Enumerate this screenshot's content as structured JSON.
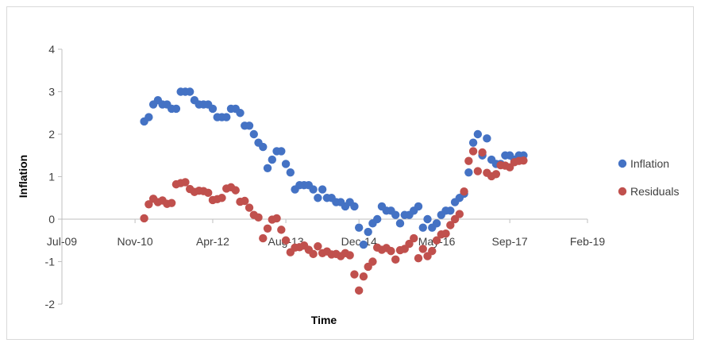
{
  "chart_data": {
    "type": "scatter",
    "xlabel": "Time",
    "ylabel": "Inflation",
    "ylim": [
      -2,
      4
    ],
    "yticks": [
      -2,
      -1,
      0,
      1,
      2,
      3,
      4
    ],
    "xlim": [
      "2009-07",
      "2019-02"
    ],
    "xticks": [
      "Jul-09",
      "Nov-10",
      "Apr-12",
      "Aug-13",
      "Dec-14",
      "May-16",
      "Sep-17",
      "Feb-19"
    ],
    "grid": false,
    "legend_position": "right",
    "series": [
      {
        "name": "Inflation",
        "color": "#4472c4",
        "points": [
          [
            "2011-01",
            2.3
          ],
          [
            "2011-02",
            2.4
          ],
          [
            "2011-03",
            2.7
          ],
          [
            "2011-04",
            2.8
          ],
          [
            "2011-05",
            2.7
          ],
          [
            "2011-06",
            2.7
          ],
          [
            "2011-07",
            2.6
          ],
          [
            "2011-08",
            2.6
          ],
          [
            "2011-09",
            3.0
          ],
          [
            "2011-10",
            3.0
          ],
          [
            "2011-11",
            3.0
          ],
          [
            "2011-12",
            2.8
          ],
          [
            "2012-01",
            2.7
          ],
          [
            "2012-02",
            2.7
          ],
          [
            "2012-03",
            2.7
          ],
          [
            "2012-04",
            2.6
          ],
          [
            "2012-05",
            2.4
          ],
          [
            "2012-06",
            2.4
          ],
          [
            "2012-07",
            2.4
          ],
          [
            "2012-08",
            2.6
          ],
          [
            "2012-09",
            2.6
          ],
          [
            "2012-10",
            2.5
          ],
          [
            "2012-11",
            2.2
          ],
          [
            "2012-12",
            2.2
          ],
          [
            "2013-01",
            2.0
          ],
          [
            "2013-02",
            1.8
          ],
          [
            "2013-03",
            1.7
          ],
          [
            "2013-04",
            1.2
          ],
          [
            "2013-05",
            1.4
          ],
          [
            "2013-06",
            1.6
          ],
          [
            "2013-07",
            1.6
          ],
          [
            "2013-08",
            1.3
          ],
          [
            "2013-09",
            1.1
          ],
          [
            "2013-10",
            0.7
          ],
          [
            "2013-11",
            0.8
          ],
          [
            "2013-12",
            0.8
          ],
          [
            "2014-01",
            0.8
          ],
          [
            "2014-02",
            0.7
          ],
          [
            "2014-03",
            0.5
          ],
          [
            "2014-04",
            0.7
          ],
          [
            "2014-05",
            0.5
          ],
          [
            "2014-06",
            0.5
          ],
          [
            "2014-07",
            0.4
          ],
          [
            "2014-08",
            0.4
          ],
          [
            "2014-09",
            0.3
          ],
          [
            "2014-10",
            0.4
          ],
          [
            "2014-11",
            0.3
          ],
          [
            "2014-12",
            -0.2
          ],
          [
            "2015-01",
            -0.6
          ],
          [
            "2015-02",
            -0.3
          ],
          [
            "2015-03",
            -0.1
          ],
          [
            "2015-04",
            0.0
          ],
          [
            "2015-05",
            0.3
          ],
          [
            "2015-06",
            0.2
          ],
          [
            "2015-07",
            0.2
          ],
          [
            "2015-08",
            0.1
          ],
          [
            "2015-09",
            -0.1
          ],
          [
            "2015-10",
            0.1
          ],
          [
            "2015-11",
            0.1
          ],
          [
            "2015-12",
            0.2
          ],
          [
            "2016-01",
            0.3
          ],
          [
            "2016-02",
            -0.2
          ],
          [
            "2016-03",
            0.0
          ],
          [
            "2016-04",
            -0.2
          ],
          [
            "2016-05",
            -0.1
          ],
          [
            "2016-06",
            0.1
          ],
          [
            "2016-07",
            0.2
          ],
          [
            "2016-08",
            0.2
          ],
          [
            "2016-09",
            0.4
          ],
          [
            "2016-10",
            0.5
          ],
          [
            "2016-11",
            0.6
          ],
          [
            "2016-12",
            1.1
          ],
          [
            "2017-01",
            1.8
          ],
          [
            "2017-02",
            2.0
          ],
          [
            "2017-03",
            1.5
          ],
          [
            "2017-04",
            1.9
          ],
          [
            "2017-05",
            1.4
          ],
          [
            "2017-06",
            1.3
          ],
          [
            "2017-07",
            1.3
          ],
          [
            "2017-08",
            1.5
          ],
          [
            "2017-09",
            1.5
          ],
          [
            "2017-10",
            1.4
          ],
          [
            "2017-11",
            1.5
          ],
          [
            "2017-12",
            1.5
          ]
        ]
      },
      {
        "name": "Residuals",
        "color": "#c0504d",
        "points": [
          [
            "2011-01",
            0.02
          ],
          [
            "2011-02",
            0.35
          ],
          [
            "2011-03",
            0.48
          ],
          [
            "2011-04",
            0.4
          ],
          [
            "2011-05",
            0.44
          ],
          [
            "2011-06",
            0.36
          ],
          [
            "2011-07",
            0.38
          ],
          [
            "2011-08",
            0.82
          ],
          [
            "2011-09",
            0.85
          ],
          [
            "2011-10",
            0.87
          ],
          [
            "2011-11",
            0.71
          ],
          [
            "2011-12",
            0.64
          ],
          [
            "2012-01",
            0.67
          ],
          [
            "2012-02",
            0.66
          ],
          [
            "2012-03",
            0.62
          ],
          [
            "2012-04",
            0.45
          ],
          [
            "2012-05",
            0.47
          ],
          [
            "2012-06",
            0.5
          ],
          [
            "2012-07",
            0.72
          ],
          [
            "2012-08",
            0.75
          ],
          [
            "2012-09",
            0.68
          ],
          [
            "2012-10",
            0.41
          ],
          [
            "2012-11",
            0.43
          ],
          [
            "2012-12",
            0.27
          ],
          [
            "2013-01",
            0.1
          ],
          [
            "2013-02",
            0.04
          ],
          [
            "2013-03",
            -0.45
          ],
          [
            "2013-04",
            -0.22
          ],
          [
            "2013-05",
            -0.01
          ],
          [
            "2013-06",
            0.02
          ],
          [
            "2013-07",
            -0.25
          ],
          [
            "2013-08",
            -0.5
          ],
          [
            "2013-09",
            -0.78
          ],
          [
            "2013-10",
            -0.67
          ],
          [
            "2013-11",
            -0.66
          ],
          [
            "2013-12",
            -0.62
          ],
          [
            "2014-01",
            -0.72
          ],
          [
            "2014-02",
            -0.82
          ],
          [
            "2014-03",
            -0.64
          ],
          [
            "2014-04",
            -0.8
          ],
          [
            "2014-05",
            -0.76
          ],
          [
            "2014-06",
            -0.83
          ],
          [
            "2014-07",
            -0.82
          ],
          [
            "2014-08",
            -0.87
          ],
          [
            "2014-09",
            -0.8
          ],
          [
            "2014-10",
            -0.85
          ],
          [
            "2014-11",
            -1.3
          ],
          [
            "2014-12",
            -1.68
          ],
          [
            "2015-01",
            -1.35
          ],
          [
            "2015-02",
            -1.12
          ],
          [
            "2015-03",
            -1.0
          ],
          [
            "2015-04",
            -0.67
          ],
          [
            "2015-05",
            -0.72
          ],
          [
            "2015-06",
            -0.68
          ],
          [
            "2015-07",
            -0.75
          ],
          [
            "2015-08",
            -0.95
          ],
          [
            "2015-09",
            -0.73
          ],
          [
            "2015-10",
            -0.7
          ],
          [
            "2015-11",
            -0.58
          ],
          [
            "2015-12",
            -0.45
          ],
          [
            "2016-01",
            -0.92
          ],
          [
            "2016-02",
            -0.7
          ],
          [
            "2016-03",
            -0.87
          ],
          [
            "2016-04",
            -0.75
          ],
          [
            "2016-05",
            -0.5
          ],
          [
            "2016-06",
            -0.36
          ],
          [
            "2016-07",
            -0.34
          ],
          [
            "2016-08",
            -0.14
          ],
          [
            "2016-09",
            0.0
          ],
          [
            "2016-10",
            0.12
          ],
          [
            "2016-11",
            0.65
          ],
          [
            "2016-12",
            1.37
          ],
          [
            "2017-01",
            1.6
          ],
          [
            "2017-02",
            1.13
          ],
          [
            "2017-03",
            1.57
          ],
          [
            "2017-04",
            1.09
          ],
          [
            "2017-05",
            1.01
          ],
          [
            "2017-06",
            1.06
          ],
          [
            "2017-07",
            1.27
          ],
          [
            "2017-08",
            1.26
          ],
          [
            "2017-09",
            1.22
          ],
          [
            "2017-10",
            1.34
          ],
          [
            "2017-11",
            1.37
          ],
          [
            "2017-12",
            1.38
          ]
        ]
      }
    ]
  }
}
